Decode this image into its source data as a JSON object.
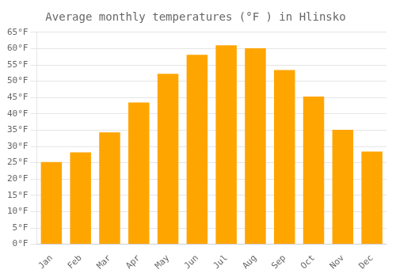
{
  "chart_data": {
    "type": "bar",
    "title": "Average monthly temperatures (°F ) in Hlinsko",
    "categories": [
      "Jan",
      "Feb",
      "Mar",
      "Apr",
      "May",
      "Jun",
      "Jul",
      "Aug",
      "Sep",
      "Oct",
      "Nov",
      "Dec"
    ],
    "values": [
      25.2,
      28.2,
      34.3,
      43.5,
      52.3,
      58.1,
      61.0,
      60.1,
      53.4,
      45.3,
      35.1,
      28.4
    ],
    "color": "#FFA500",
    "ylim": [
      0,
      65
    ],
    "yticks": [
      {
        "value": 0,
        "label": "0°F"
      },
      {
        "value": 5,
        "label": "5°F"
      },
      {
        "value": 10,
        "label": "10°F"
      },
      {
        "value": 15,
        "label": "15°F"
      },
      {
        "value": 20,
        "label": "20°F"
      },
      {
        "value": 25,
        "label": "25°F"
      },
      {
        "value": 30,
        "label": "30°F"
      },
      {
        "value": 35,
        "label": "35°F"
      },
      {
        "value": 40,
        "label": "40°F"
      },
      {
        "value": 45,
        "label": "45°F"
      },
      {
        "value": 50,
        "label": "50°F"
      },
      {
        "value": 55,
        "label": "55°F"
      },
      {
        "value": 60,
        "label": "60°F"
      },
      {
        "value": 65,
        "label": "65°F"
      }
    ],
    "grid": true
  }
}
